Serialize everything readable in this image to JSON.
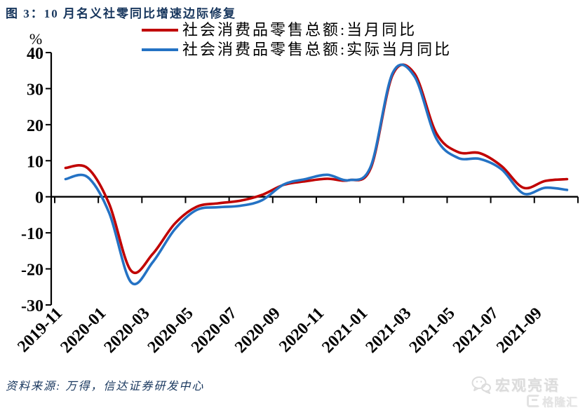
{
  "title": "图 3：10 月名义社零同比增速边际修复",
  "colors": {
    "nominal_line": "#C00000",
    "real_line": "#2472C4",
    "title_text": "#17365D",
    "axis": "#000000",
    "watermark": "#DEDEDE"
  },
  "legend": {
    "items": [
      {
        "label": "社会消费品零售总额:当月同比",
        "color": "#C00000"
      },
      {
        "label": "社会消费品零售总额:实际当月同比",
        "color": "#2472C4"
      }
    ]
  },
  "y_axis": {
    "unit_label": "%",
    "ticks": [
      40,
      30,
      20,
      10,
      0,
      -10,
      -20,
      -30
    ]
  },
  "x_axis": {
    "tick_labels": [
      "2019-11",
      "2020-01",
      "2020-03",
      "2020-05",
      "2020-07",
      "2020-09",
      "2020-11",
      "2021-01",
      "2021-03",
      "2021-05",
      "2021-07",
      "2021-09"
    ]
  },
  "source_note": "资料来源: 万得，信达证券研发中心",
  "watermark": {
    "brand": "宏观亮语",
    "logo_text": "格隆汇"
  },
  "chart_data": {
    "type": "line",
    "title": "图 3：10 月名义社零同比增速边际修复",
    "ylabel": "%",
    "ylim": [
      -30,
      40
    ],
    "grid": false,
    "legend_position": "top",
    "smoothed": true,
    "x": [
      "2019-11",
      "2019-12",
      "2020-01",
      "2020-02",
      "2020-03",
      "2020-04",
      "2020-05",
      "2020-06",
      "2020-07",
      "2020-08",
      "2020-09",
      "2020-10",
      "2020-11",
      "2020-12",
      "2021-01",
      "2021-02",
      "2021-03",
      "2021-04",
      "2021-05",
      "2021-06",
      "2021-07",
      "2021-08",
      "2021-09",
      "2021-10"
    ],
    "series": [
      {
        "name": "社会消费品零售总额:当月同比",
        "color": "#C00000",
        "values": [
          8.0,
          8.0,
          -2.0,
          -20.5,
          -15.8,
          -7.5,
          -2.8,
          -1.8,
          -1.1,
          0.5,
          3.3,
          4.3,
          5.0,
          4.6,
          8.0,
          33.8,
          34.2,
          17.7,
          12.4,
          12.1,
          8.5,
          2.5,
          4.4,
          4.9
        ]
      },
      {
        "name": "社会消费品零售总额:实际当月同比",
        "color": "#2472C4",
        "values": [
          4.9,
          5.5,
          -4.5,
          -23.7,
          -18.1,
          -9.1,
          -3.7,
          -2.9,
          -2.5,
          -1.0,
          3.4,
          4.9,
          6.1,
          4.6,
          8.5,
          34.3,
          33.4,
          16.2,
          10.8,
          10.5,
          7.6,
          0.9,
          2.5,
          1.9
        ]
      }
    ]
  }
}
